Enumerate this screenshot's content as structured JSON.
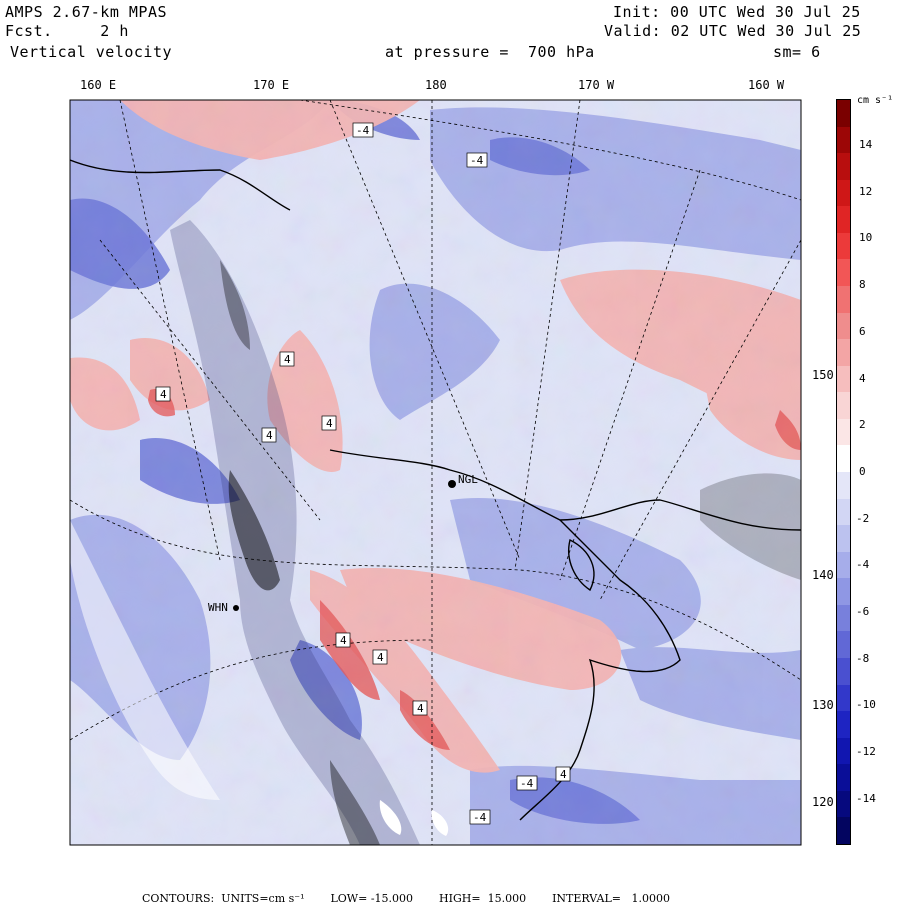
{
  "header": {
    "model": "AMPS 2.67-km MPAS",
    "forecast": "Fcst.     2 h",
    "field": "Vertical velocity",
    "init": "Init: 00 UTC Wed 30 Jul 25",
    "valid": "Valid: 02 UTC Wed 30 Jul 25",
    "level": "at pressure =  700 hPa",
    "smoothing": "sm= 6"
  },
  "longitude_labels": [
    "160 E",
    "170 E",
    "180",
    "170 W",
    "160 W"
  ],
  "latitude_labels": [
    "150 W",
    "140 W",
    "130 W",
    "120 W"
  ],
  "station_labels": [
    "NGL",
    "WHN"
  ],
  "contour_labels": [
    "-4",
    "4"
  ],
  "colorbar": {
    "unit": "cm s⁻¹",
    "ticks": [
      "14",
      "12",
      "10",
      "8",
      "6",
      "4",
      "2",
      "0",
      "-2",
      "-4",
      "-6",
      "-8",
      "-10",
      "-12",
      "-14"
    ],
    "colors": [
      "#7a0000",
      "#9c0606",
      "#b80e0e",
      "#cf1717",
      "#e02525",
      "#ec3a3a",
      "#f25656",
      "#f07272",
      "#ef8d8d",
      "#f3a5a5",
      "#f6bebe",
      "#f9d5d5",
      "#fbe6e6",
      "#ffffff",
      "#e4e6f8",
      "#d2d6f4",
      "#bcc2ef",
      "#a6adea",
      "#8f97e4",
      "#7880dc",
      "#6168d6",
      "#4a50d0",
      "#3238ca",
      "#1e24c2",
      "#1116b0",
      "#0a0e98",
      "#06097e",
      "#030560"
    ]
  },
  "footer": {
    "contours": "CONTOURS:  UNITS=cm s⁻¹",
    "low": "LOW= -15.000",
    "high": "HIGH=  15.000",
    "interval": "INTERVAL=   1.0000"
  },
  "colors": {
    "background_field": "#dfe3f7",
    "positive": "#f2a3a3",
    "negative": "#7f8ae0",
    "strong_positive": "#b00000",
    "strong_negative": "#1020c0"
  }
}
